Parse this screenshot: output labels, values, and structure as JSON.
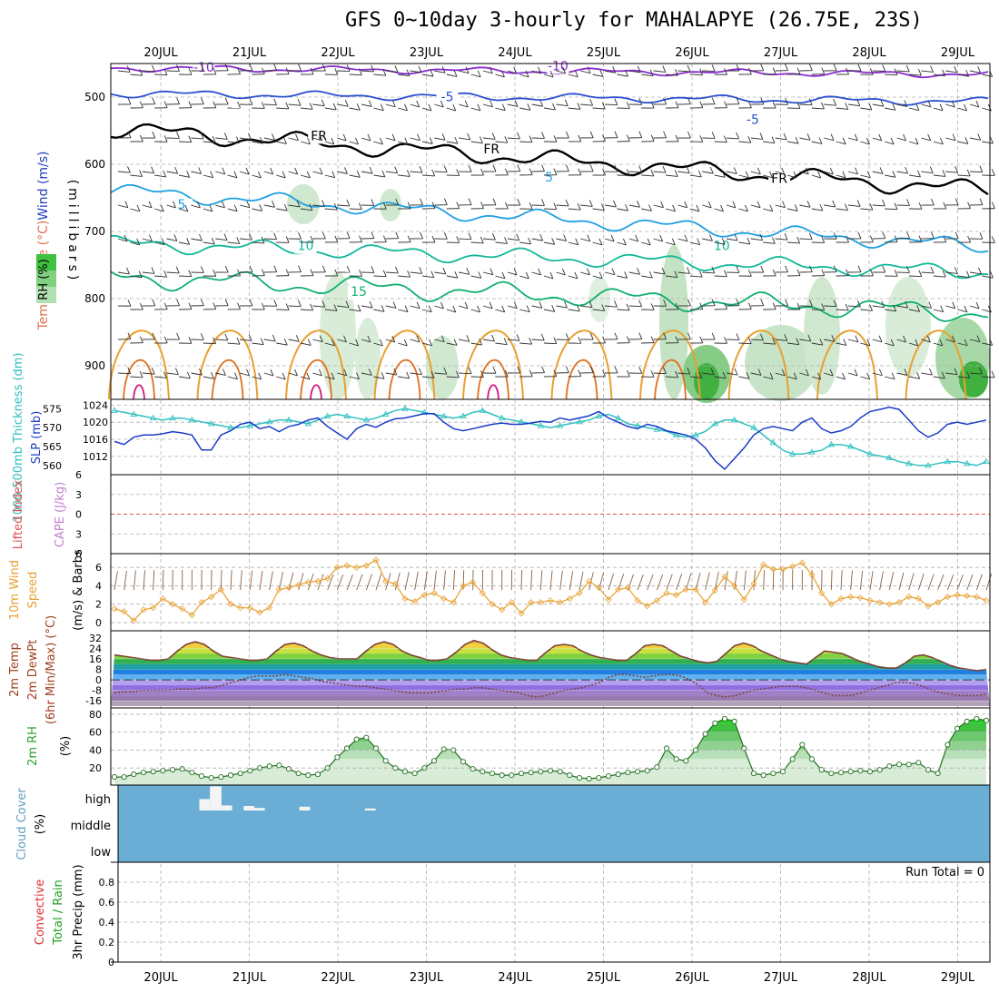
{
  "title": "GFS 0~10day 3-hourly for MAHALAPYE (26.75E, 23S)",
  "colors": {
    "t_m10": "#8a2bd0",
    "t_m5": "#2a4fd0",
    "t_0": "#000000",
    "t_5": "#1ea0e0",
    "t_10": "#10b89a",
    "t_15": "#10b070",
    "t_20": "#e8a030",
    "t_25": "#e07020",
    "t_30": "#d01880",
    "slp": "#1a3cc8",
    "thick": "#30c0c0",
    "wind10": "#e8a030",
    "barb10": "#8b6040",
    "rh_line": "#30a030",
    "cloud": "#6aaed6",
    "li_line": "#e05050",
    "grid": "#b0b0b0"
  },
  "chart_data": [
    {
      "type": "line",
      "panel": "upper-air",
      "ylabel_parts": [
        "Temperature (°C)",
        "Wind (m/s)"
      ],
      "ylabel2": "(millibars)",
      "rh_label": "RH (%)",
      "yticks": [
        500,
        600,
        700,
        800,
        900
      ],
      "ylim": [
        450,
        950
      ],
      "x_labels": [
        "20JUL",
        "21JUL",
        "22JUL",
        "23JUL",
        "24JUL",
        "25JUL",
        "26JUL",
        "27JUL",
        "28JUL",
        "29JUL"
      ],
      "freezing_label": "FR",
      "isotherm_labels": [
        {
          "text": "-10",
          "day": 0.6,
          "p": 462,
          "c": "t_m10"
        },
        {
          "text": "-10",
          "day": 4.6,
          "p": 460,
          "c": "t_m10"
        },
        {
          "text": "-5",
          "day": 3.35,
          "p": 506,
          "c": "t_m5"
        },
        {
          "text": "-5",
          "day": 6.8,
          "p": 540,
          "c": "t_m5"
        },
        {
          "text": "FR",
          "day": 1.9,
          "p": 564,
          "c": "t_0"
        },
        {
          "text": "FR",
          "day": 3.85,
          "p": 584,
          "c": "t_0"
        },
        {
          "text": "FR",
          "day": 7.1,
          "p": 628,
          "c": "t_0"
        },
        {
          "text": "5",
          "day": 0.35,
          "p": 666,
          "c": "t_5"
        },
        {
          "text": "5",
          "day": 4.5,
          "p": 626,
          "c": "t_5"
        },
        {
          "text": "10",
          "day": 1.75,
          "p": 728,
          "c": "t_10"
        },
        {
          "text": "10",
          "day": 6.45,
          "p": 728,
          "c": "t_10"
        },
        {
          "text": "15",
          "day": 2.35,
          "p": 796,
          "c": "t_15"
        }
      ]
    },
    {
      "type": "line",
      "panel": "slp-thickness",
      "ylabel_left": "1000-500mb Thickness (dm)",
      "ylabel_right": "SLP (mb)",
      "thick_ticks": [
        560,
        565,
        570,
        575
      ],
      "slp_ticks": [
        1012,
        1016,
        1020,
        1024
      ],
      "slp": [
        1015.5,
        1014.8,
        1016.5,
        1017.0,
        1017.0,
        1017.3,
        1017.8,
        1017.5,
        1017.0,
        1013.5,
        1013.5,
        1017.0,
        1018.0,
        1019.5,
        1020.0,
        1018.5,
        1019.0,
        1017.8,
        1019.0,
        1019.5,
        1020.5,
        1021.0,
        1019.0,
        1017.5,
        1016.0,
        1018.5,
        1019.5,
        1018.8,
        1020.0,
        1020.8,
        1021.0,
        1021.5,
        1022.0,
        1022.0,
        1020.0,
        1018.5,
        1018.0,
        1018.5,
        1019.0,
        1019.5,
        1019.8,
        1019.5,
        1019.5,
        1019.8,
        1020.2,
        1020.0,
        1021.0,
        1020.5,
        1021.0,
        1021.5,
        1022.5,
        1021.0,
        1020.0,
        1019.0,
        1018.5,
        1019.5,
        1019.0,
        1018.0,
        1017.5,
        1017.0,
        1016.0,
        1014.0,
        1011.0,
        1009.0,
        1011.5,
        1014.0,
        1017.0,
        1018.5,
        1019.0,
        1018.5,
        1018.0,
        1020.0,
        1021.0,
        1018.5,
        1017.5,
        1018.0,
        1019.0,
        1021.0,
        1022.5,
        1023.0,
        1023.5,
        1023.0,
        1020.5,
        1018.0,
        1016.5,
        1017.5,
        1019.5,
        1020.0,
        1019.5,
        1020.0,
        1020.5
      ],
      "thickness": [
        574.5,
        574.0,
        573.5,
        573.0,
        572.5,
        572.0,
        572.5,
        572.5,
        572.0,
        571.5,
        571.0,
        570.5,
        570.0,
        570.0,
        570.5,
        571.0,
        571.5,
        572.0,
        572.0,
        571.5,
        571.0,
        572.0,
        573.0,
        573.5,
        573.0,
        572.5,
        572.0,
        572.5,
        573.5,
        574.5,
        575.0,
        574.5,
        574.0,
        573.5,
        573.0,
        572.5,
        573.0,
        574.0,
        574.5,
        573.5,
        572.5,
        572.0,
        571.5,
        571.0,
        570.5,
        570.0,
        570.5,
        571.0,
        571.5,
        572.0,
        573.0,
        573.5,
        572.5,
        571.0,
        570.5,
        570.0,
        569.5,
        569.0,
        568.0,
        567.5,
        568.0,
        569.0,
        571.0,
        572.0,
        572.0,
        571.0,
        570.0,
        568.0,
        566.0,
        564.0,
        563.0,
        563.0,
        563.5,
        564.0,
        565.5,
        565.5,
        565.0,
        564.0,
        563.0,
        562.5,
        562.0,
        561.0,
        560.5,
        560.0,
        560.0,
        560.5,
        561.0,
        561.0,
        560.5,
        560.0,
        561.0
      ]
    },
    {
      "type": "line",
      "panel": "stability",
      "ylabel_left": "Lifted Index",
      "ylabel_right": "CAPE (J/kg)",
      "li_ticks": [
        -6,
        -3,
        0,
        3,
        6
      ],
      "ylim": [
        -6,
        6
      ]
    },
    {
      "type": "line",
      "panel": "wind10m",
      "ylabel": "10m Wind Speed (m/s) & Barbs",
      "label_a": "10m Wind",
      "label_b": "Speed",
      "label_c": "(m/s) & Barbs",
      "yticks": [
        0,
        2,
        4,
        6
      ],
      "ylim": [
        -0.5,
        7.5
      ],
      "speed": [
        1.5,
        1.2,
        0.2,
        1.4,
        1.6,
        2.6,
        2.0,
        1.5,
        0.8,
        2.2,
        2.8,
        3.6,
        2.0,
        1.6,
        1.6,
        1.1,
        1.6,
        3.6,
        3.8,
        4.1,
        4.4,
        4.5,
        4.8,
        6.0,
        6.2,
        6.0,
        6.2,
        6.8,
        4.5,
        4.2,
        2.6,
        2.3,
        3.0,
        3.2,
        2.6,
        2.2,
        4.0,
        4.4,
        3.2,
        2.0,
        1.4,
        2.2,
        1.0,
        2.2,
        2.2,
        2.4,
        2.2,
        2.6,
        3.2,
        4.5,
        3.8,
        2.5,
        3.6,
        3.8,
        2.4,
        1.8,
        2.4,
        3.2,
        3.0,
        3.6,
        3.6,
        2.2,
        3.5,
        5.0,
        4.0,
        2.5,
        4.2,
        6.3,
        5.8,
        5.8,
        6.1,
        6.5,
        5.2,
        3.2,
        2.0,
        2.6,
        2.8,
        2.7,
        2.4,
        2.2,
        2.0,
        2.2,
        2.8,
        2.6,
        1.8,
        2.2,
        2.8,
        3.0,
        2.9,
        2.8,
        2.4
      ]
    },
    {
      "type": "line",
      "panel": "temp2m",
      "ylabel_parts": [
        "2m Temp",
        "2m DewPt",
        "(6hr Min/Max) (°C)"
      ],
      "yticks": [
        -16,
        -8,
        0,
        8,
        16,
        24,
        32
      ],
      "ylim": [
        -20,
        36
      ],
      "temp": [
        19,
        18,
        17,
        16,
        15,
        15,
        16,
        22,
        27,
        29,
        27,
        22,
        18,
        17,
        16,
        15,
        15,
        16,
        22,
        27,
        28,
        26,
        22,
        19,
        17,
        16,
        16,
        16,
        22,
        27,
        29,
        27,
        22,
        19,
        17,
        15,
        15,
        16,
        21,
        27,
        30,
        28,
        23,
        19,
        17,
        16,
        15,
        15,
        21,
        26,
        27,
        26,
        22,
        19,
        17,
        16,
        15,
        15,
        20,
        26,
        27,
        26,
        22,
        18,
        16,
        14,
        13,
        14,
        20,
        26,
        28,
        26,
        22,
        19,
        16,
        14,
        13,
        12,
        17,
        22,
        21,
        20,
        17,
        14,
        12,
        10,
        9,
        9,
        13,
        18,
        19,
        17,
        14,
        11,
        9,
        8,
        7,
        8
      ],
      "dew": [
        -10,
        -9,
        -9,
        -8,
        -8,
        -8,
        -8,
        -7,
        -7,
        -7,
        -6,
        -6,
        -4,
        -2,
        0,
        2,
        3,
        3,
        3,
        4,
        3,
        2,
        1,
        -1,
        -2,
        -3,
        -4,
        -5,
        -5,
        -6,
        -7,
        -8,
        -9,
        -10,
        -10,
        -10,
        -9,
        -8,
        -7,
        -7,
        -6,
        -6,
        -7,
        -8,
        -9,
        -10,
        -12,
        -13,
        -12,
        -10,
        -8,
        -7,
        -6,
        -4,
        -2,
        2,
        4,
        4,
        3,
        2,
        3,
        4,
        4,
        3,
        0,
        -4,
        -10,
        -12,
        -13,
        -12,
        -10,
        -8,
        -7,
        -6,
        -5,
        -5,
        -5,
        -6,
        -8,
        -10,
        -12,
        -12,
        -12,
        -10,
        -8,
        -6,
        -4,
        -2,
        -2,
        -3,
        -5,
        -8,
        -10,
        -11,
        -12,
        -12,
        -12,
        -11
      ]
    },
    {
      "type": "area",
      "panel": "rh2m",
      "ylabel": "2m RH",
      "unit": "(%)",
      "yticks": [
        20,
        40,
        60,
        80
      ],
      "ylim": [
        5,
        85
      ],
      "rh": [
        10,
        10,
        13,
        15,
        16,
        17,
        18,
        19,
        15,
        11,
        9,
        10,
        12,
        14,
        17,
        20,
        22,
        23,
        19,
        14,
        12,
        13,
        20,
        32,
        42,
        52,
        54,
        42,
        28,
        20,
        16,
        14,
        20,
        28,
        41,
        40,
        27,
        19,
        16,
        14,
        12,
        12,
        14,
        15,
        16,
        17,
        16,
        12,
        9,
        8,
        9,
        11,
        13,
        15,
        16,
        17,
        21,
        42,
        30,
        28,
        40,
        58,
        70,
        75,
        72,
        42,
        14,
        12,
        14,
        16,
        30,
        46,
        30,
        18,
        14,
        15,
        16,
        17,
        16,
        18,
        22,
        24,
        24,
        26,
        18,
        14,
        46,
        64,
        72,
        75,
        73
      ]
    },
    {
      "type": "bar",
      "panel": "cloud",
      "ylabel": "Cloud Cover",
      "unit": "(%)",
      "levels": [
        "high",
        "middle",
        "low"
      ],
      "high_segments": [
        {
          "d0": 0.55,
          "d1": 0.67,
          "v": 0.45
        },
        {
          "d0": 0.67,
          "d1": 0.8,
          "v": 0.95
        },
        {
          "d0": 0.8,
          "d1": 0.92,
          "v": 0.2
        },
        {
          "d0": 1.05,
          "d1": 1.17,
          "v": 0.18
        },
        {
          "d0": 1.17,
          "d1": 1.29,
          "v": 0.1
        },
        {
          "d0": 1.68,
          "d1": 1.8,
          "v": 0.15
        },
        {
          "d0": 2.42,
          "d1": 2.54,
          "v": 0.08
        }
      ]
    },
    {
      "type": "bar",
      "panel": "precip",
      "ylabel": "3hr Precip (mm)",
      "label_total": "Total / Rain",
      "label_conv": "Convective",
      "run_total": "Run Total = 0",
      "yticks": [
        0,
        0.2,
        0.4,
        0.6,
        0.8
      ],
      "ytick_labels": [
        "0",
        "0.2",
        "0.4",
        "0.6",
        "0.8"
      ],
      "ylim": [
        0,
        1.0
      ]
    }
  ]
}
